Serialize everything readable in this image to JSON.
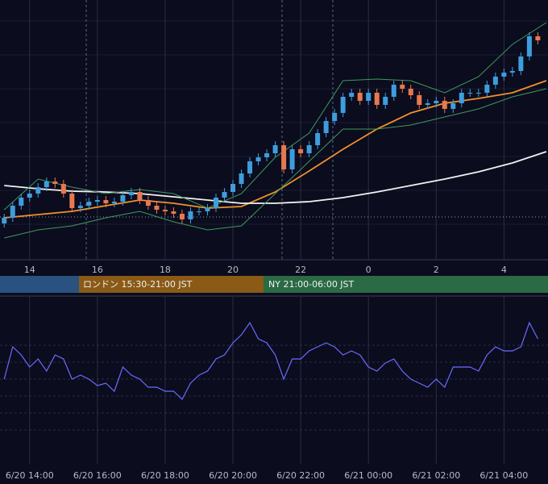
{
  "chart_data": [
    {
      "type": "candlestick",
      "xlim": [
        -0.5,
        64.2
      ],
      "ylim": [
        0,
        322
      ],
      "xticks": [
        {
          "value": 3,
          "label": "14"
        },
        {
          "value": 11,
          "label": "16"
        },
        {
          "value": 19,
          "label": "18"
        },
        {
          "value": 27,
          "label": "20"
        },
        {
          "value": 35,
          "label": "22"
        },
        {
          "value": 43,
          "label": "0"
        },
        {
          "value": 51,
          "label": "2"
        },
        {
          "value": 59,
          "label": "4"
        }
      ],
      "open": [
        45,
        52,
        67,
        77,
        82,
        90,
        97,
        94,
        82,
        64,
        67,
        72,
        74,
        70,
        72,
        80,
        84,
        74,
        67,
        62,
        60,
        57,
        50,
        60,
        60,
        64,
        77,
        84,
        94,
        107,
        122,
        127,
        132,
        142,
        112,
        137,
        132,
        142,
        157,
        172,
        182,
        202,
        207,
        197,
        207,
        192,
        202,
        217,
        212,
        204,
        192,
        194,
        197,
        187,
        194,
        207,
        207,
        207,
        217,
        227,
        232,
        234,
        252,
        277
      ],
      "high": [
        57,
        72,
        82,
        87,
        95,
        102,
        102,
        99,
        87,
        72,
        77,
        79,
        79,
        77,
        85,
        89,
        89,
        79,
        72,
        67,
        65,
        62,
        65,
        65,
        69,
        82,
        89,
        99,
        112,
        127,
        132,
        137,
        147,
        147,
        142,
        142,
        147,
        162,
        177,
        187,
        207,
        212,
        212,
        212,
        212,
        207,
        222,
        222,
        217,
        209,
        199,
        202,
        202,
        199,
        212,
        212,
        212,
        222,
        232,
        237,
        239,
        257,
        282,
        282
      ],
      "low": [
        40,
        47,
        62,
        72,
        77,
        85,
        89,
        77,
        59,
        59,
        62,
        67,
        65,
        65,
        67,
        75,
        69,
        62,
        57,
        55,
        52,
        45,
        45,
        55,
        55,
        59,
        72,
        79,
        89,
        102,
        117,
        122,
        127,
        107,
        107,
        127,
        127,
        137,
        152,
        167,
        177,
        197,
        192,
        192,
        187,
        187,
        197,
        207,
        199,
        187,
        187,
        189,
        182,
        182,
        189,
        202,
        202,
        202,
        212,
        222,
        227,
        229,
        247,
        267
      ],
      "close": [
        52,
        67,
        77,
        82,
        90,
        97,
        94,
        82,
        64,
        67,
        72,
        74,
        70,
        72,
        80,
        84,
        74,
        67,
        62,
        60,
        57,
        50,
        60,
        60,
        64,
        77,
        84,
        94,
        107,
        122,
        127,
        132,
        142,
        112,
        137,
        132,
        142,
        157,
        172,
        182,
        202,
        207,
        197,
        207,
        192,
        202,
        217,
        212,
        204,
        192,
        194,
        197,
        187,
        194,
        207,
        207,
        207,
        217,
        227,
        232,
        234,
        252,
        277,
        272
      ],
      "up_color": "#3f9ddc",
      "down_color": "#e8784e",
      "lines": [
        {
          "color": "#f0922b",
          "x": [
            0,
            4,
            8,
            12,
            16,
            20,
            24,
            28,
            32,
            36,
            40,
            44,
            48,
            52,
            56,
            60,
            64
          ],
          "values": [
            52,
            56,
            60,
            67,
            74,
            70,
            64,
            66,
            84,
            110,
            137,
            162,
            182,
            194,
            200,
            207,
            222
          ]
        },
        {
          "color": "#f2f2f2",
          "x": [
            0,
            4,
            8,
            12,
            16,
            20,
            24,
            28,
            32,
            36,
            40,
            44,
            48,
            52,
            56,
            60,
            64
          ],
          "values": [
            92,
            88,
            85,
            84,
            82,
            78,
            74,
            70,
            70,
            72,
            77,
            84,
            92,
            100,
            109,
            120,
            134
          ]
        },
        {
          "color": "#3f9a5c",
          "x": [
            0,
            4,
            8,
            12,
            16,
            20,
            24,
            28,
            32,
            36,
            40,
            44,
            48,
            52,
            56,
            60,
            64
          ],
          "values": [
            62,
            100,
            90,
            82,
            87,
            82,
            64,
            82,
            127,
            157,
            222,
            224,
            222,
            207,
            227,
            267,
            294
          ]
        },
        {
          "color": "#3f9a5c",
          "x": [
            0,
            4,
            8,
            12,
            16,
            20,
            24,
            28,
            32,
            36,
            40,
            44,
            48,
            52,
            56,
            60,
            64
          ],
          "values": [
            27,
            37,
            42,
            52,
            60,
            47,
            37,
            42,
            82,
            122,
            162,
            162,
            167,
            177,
            187,
            202,
            212
          ]
        }
      ],
      "price_line": 53
    },
    {
      "type": "line",
      "xlim": [
        -0.5,
        64.2
      ],
      "ylim": [
        0,
        207
      ],
      "xticks": [
        {
          "value": 3,
          "label": "6/20 14:00"
        },
        {
          "value": 11,
          "label": "6/20 16:00"
        },
        {
          "value": 19,
          "label": "6/20 18:00"
        },
        {
          "value": 27,
          "label": "6/20 20:00"
        },
        {
          "value": 35,
          "label": "6/20 22:00"
        },
        {
          "value": 43,
          "label": "6/21 00:00"
        },
        {
          "value": 51,
          "label": "6/21 02:00"
        },
        {
          "value": 59,
          "label": "6/21 04:00"
        }
      ],
      "series": [
        {
          "color": "#6b6bff",
          "values": [
            105,
            145,
            135,
            120,
            130,
            115,
            135,
            130,
            105,
            110,
            105,
            97,
            100,
            90,
            120,
            110,
            105,
            95,
            95,
            90,
            90,
            80,
            100,
            110,
            115,
            130,
            135,
            150,
            160,
            175,
            155,
            150,
            135,
            105,
            130,
            130,
            140,
            145,
            150,
            145,
            135,
            140,
            135,
            120,
            115,
            125,
            130,
            115,
            105,
            100,
            95,
            105,
            95,
            120,
            120,
            120,
            115,
            135,
            145,
            140,
            140,
            145,
            175,
            155
          ]
        }
      ]
    }
  ],
  "sessions": [
    {
      "label": "ロンドン 15:30-21:00 JST"
    },
    {
      "label": "NY 21:00-06:00 JST"
    }
  ]
}
